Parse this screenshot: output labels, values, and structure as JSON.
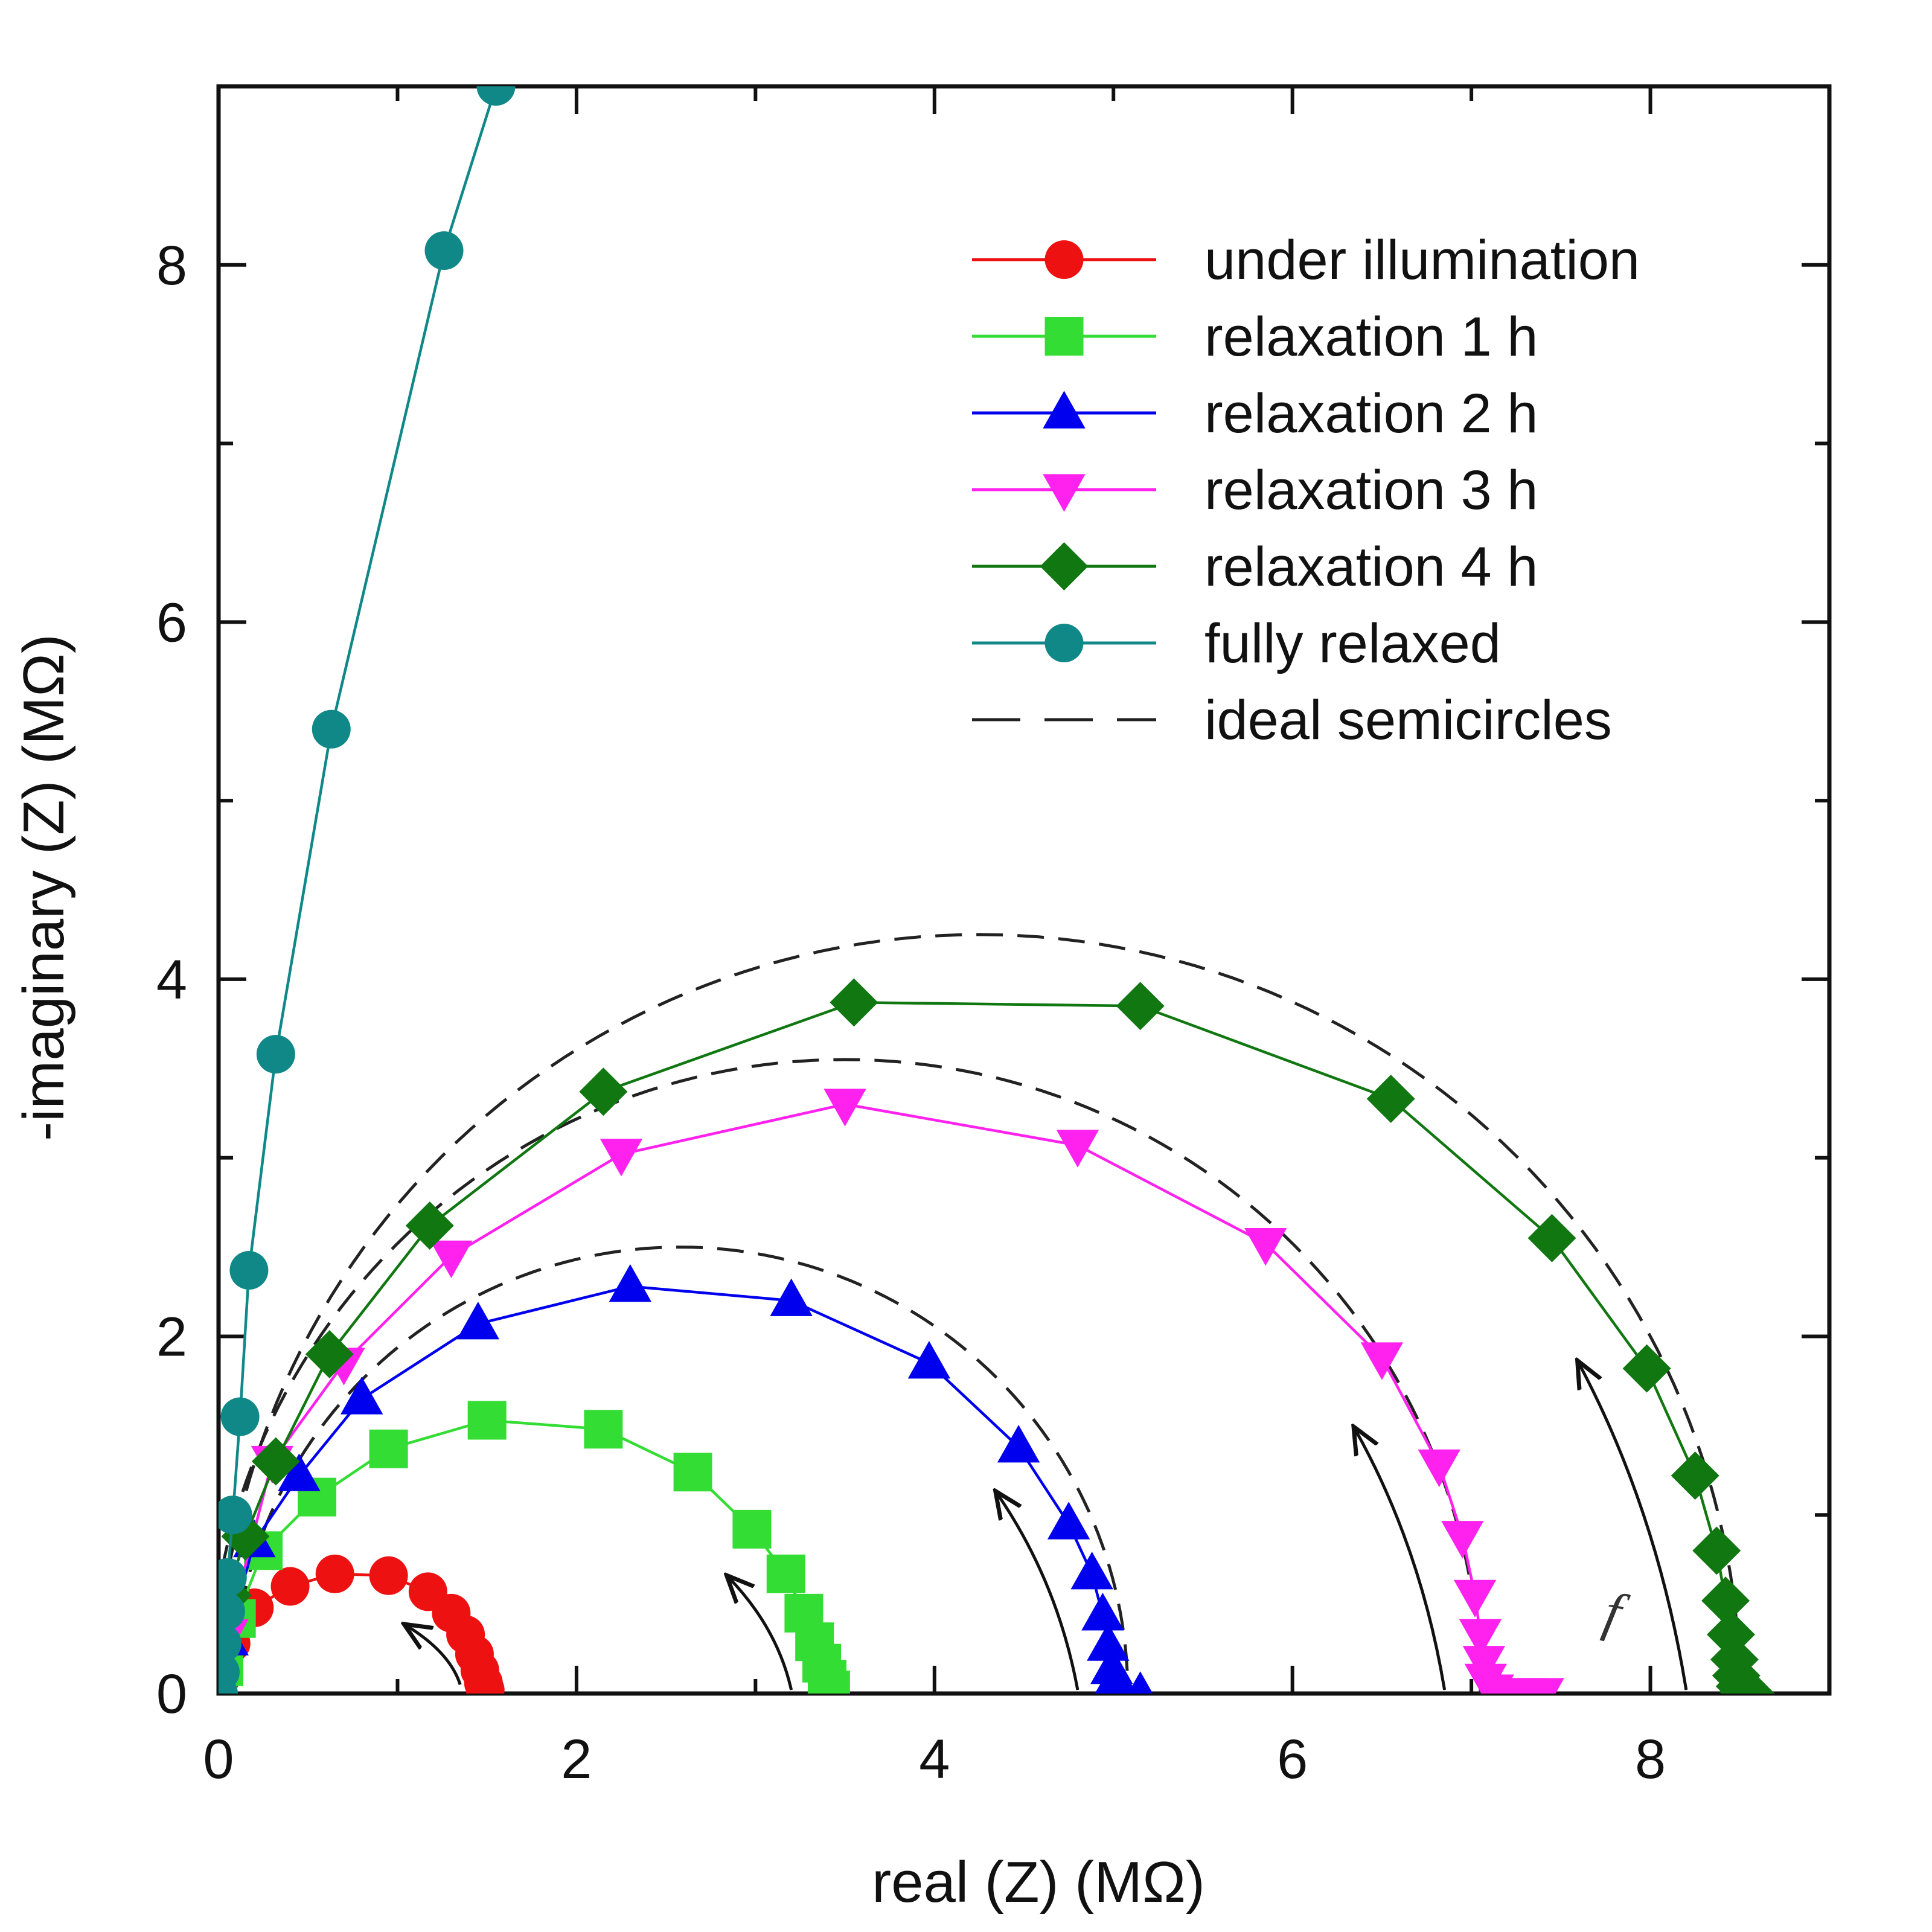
{
  "chart_data": {
    "type": "scatter",
    "title": "",
    "xlabel": "real (Z) (MΩ)",
    "ylabel": "-imaginary (Z) (MΩ)",
    "xlim": [
      0,
      9
    ],
    "ylim": [
      0,
      9
    ],
    "x_ticks": [
      "0",
      "2",
      "4",
      "6",
      "8"
    ],
    "y_ticks": [
      "0",
      "2",
      "4",
      "6",
      "8"
    ],
    "grid": false,
    "legend_position": "top-right",
    "frequency_label": "f",
    "series": [
      {
        "name": "under illumination",
        "color": "#ee1111",
        "marker": "circle",
        "points": [
          [
            0.02,
            0.1
          ],
          [
            0.07,
            0.28
          ],
          [
            0.2,
            0.48
          ],
          [
            0.4,
            0.6
          ],
          [
            0.65,
            0.67
          ],
          [
            0.95,
            0.66
          ],
          [
            1.17,
            0.57
          ],
          [
            1.3,
            0.45
          ],
          [
            1.38,
            0.33
          ],
          [
            1.43,
            0.22
          ],
          [
            1.46,
            0.13
          ],
          [
            1.48,
            0.06
          ],
          [
            1.49,
            0.02
          ]
        ]
      },
      {
        "name": "relaxation 1 h",
        "color": "#33dd33",
        "marker": "square",
        "points": [
          [
            0.03,
            0.15
          ],
          [
            0.1,
            0.42
          ],
          [
            0.25,
            0.8
          ],
          [
            0.55,
            1.1
          ],
          [
            0.95,
            1.37
          ],
          [
            1.5,
            1.53
          ],
          [
            2.15,
            1.48
          ],
          [
            2.65,
            1.24
          ],
          [
            2.98,
            0.92
          ],
          [
            3.17,
            0.67
          ],
          [
            3.27,
            0.45
          ],
          [
            3.33,
            0.29
          ],
          [
            3.37,
            0.17
          ],
          [
            3.4,
            0.08
          ],
          [
            3.42,
            0.02
          ]
        ]
      },
      {
        "name": "relaxation 2 h",
        "color": "#0000ee",
        "marker": "triangle-up",
        "points": [
          [
            0.05,
            0.3
          ],
          [
            0.2,
            0.85
          ],
          [
            0.45,
            1.22
          ],
          [
            0.8,
            1.65
          ],
          [
            1.45,
            2.07
          ],
          [
            2.3,
            2.28
          ],
          [
            3.2,
            2.2
          ],
          [
            3.97,
            1.85
          ],
          [
            4.47,
            1.38
          ],
          [
            4.75,
            0.95
          ],
          [
            4.88,
            0.67
          ],
          [
            4.94,
            0.44
          ],
          [
            4.97,
            0.27
          ],
          [
            4.99,
            0.14
          ],
          [
            5.0,
            0.06
          ],
          [
            5.02,
            0.02
          ],
          [
            5.06,
            0.0
          ],
          [
            5.15,
            0.0
          ]
        ]
      },
      {
        "name": "relaxation 3 h",
        "color": "#ff22ee",
        "marker": "triangle-down",
        "points": [
          [
            0.05,
            0.33
          ],
          [
            0.3,
            1.3
          ],
          [
            0.7,
            1.85
          ],
          [
            1.3,
            2.45
          ],
          [
            2.25,
            3.02
          ],
          [
            3.5,
            3.3
          ],
          [
            4.8,
            3.07
          ],
          [
            5.85,
            2.52
          ],
          [
            6.5,
            1.88
          ],
          [
            6.82,
            1.28
          ],
          [
            6.95,
            0.88
          ],
          [
            7.02,
            0.55
          ],
          [
            7.05,
            0.33
          ],
          [
            7.07,
            0.18
          ],
          [
            7.08,
            0.08
          ],
          [
            7.12,
            0.02
          ],
          [
            7.2,
            0.0
          ],
          [
            7.3,
            0.0
          ],
          [
            7.4,
            0.0
          ]
        ]
      },
      {
        "name": "relaxation 4 h",
        "color": "#117711",
        "marker": "diamond",
        "points": [
          [
            0.05,
            0.55
          ],
          [
            0.15,
            0.88
          ],
          [
            0.32,
            1.3
          ],
          [
            0.62,
            1.9
          ],
          [
            1.18,
            2.62
          ],
          [
            2.15,
            3.37
          ],
          [
            3.55,
            3.87
          ],
          [
            5.15,
            3.85
          ],
          [
            6.55,
            3.33
          ],
          [
            7.45,
            2.55
          ],
          [
            7.98,
            1.82
          ],
          [
            8.25,
            1.22
          ],
          [
            8.37,
            0.8
          ],
          [
            8.42,
            0.52
          ],
          [
            8.45,
            0.33
          ],
          [
            8.47,
            0.19
          ],
          [
            8.48,
            0.1
          ],
          [
            8.5,
            0.04
          ],
          [
            8.52,
            0.01
          ],
          [
            8.56,
            0.0
          ]
        ]
      },
      {
        "name": "fully relaxed",
        "color": "#118888",
        "marker": "circle",
        "points": [
          [
            0.0,
            0.0
          ],
          [
            0.01,
            0.12
          ],
          [
            0.02,
            0.28
          ],
          [
            0.04,
            0.46
          ],
          [
            0.05,
            0.65
          ],
          [
            0.08,
            1.0
          ],
          [
            0.12,
            1.55
          ],
          [
            0.17,
            2.37
          ],
          [
            0.32,
            3.58
          ],
          [
            0.63,
            5.4
          ],
          [
            1.26,
            8.08
          ],
          [
            1.55,
            9.0
          ]
        ]
      },
      {
        "name": "ideal semicircles",
        "color": "#222222",
        "marker": "none",
        "dashed": true,
        "semicircles": [
          {
            "center": 2.58,
            "radius": 2.5
          },
          {
            "center": 3.5,
            "radius": 3.55
          },
          {
            "center": 4.25,
            "radius": 4.25
          }
        ]
      }
    ],
    "arrows": [
      {
        "from": [
          1.35,
          0.05
        ],
        "to": [
          1.05,
          0.38
        ]
      },
      {
        "from": [
          3.2,
          0.02
        ],
        "to": [
          2.85,
          0.65
        ]
      },
      {
        "from": [
          4.8,
          0.02
        ],
        "to": [
          4.35,
          1.12
        ]
      },
      {
        "from": [
          6.85,
          0.02
        ],
        "to": [
          6.35,
          1.48
        ]
      },
      {
        "from": [
          8.2,
          0.02
        ],
        "to": [
          7.6,
          1.85
        ]
      }
    ]
  }
}
